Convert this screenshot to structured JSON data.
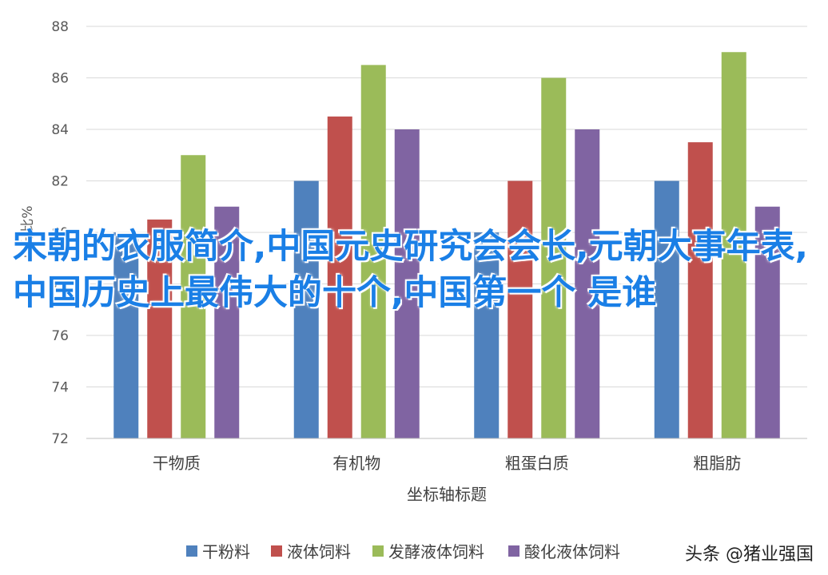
{
  "chart_data": {
    "type": "bar",
    "categories": [
      "干物质",
      "有机物",
      "粗蛋白质",
      "粗脂肪"
    ],
    "series": [
      {
        "name": "干粉料",
        "color": "#4f81bd",
        "values": [
          80,
          82,
          80,
          82
        ]
      },
      {
        "name": "液体饲料",
        "color": "#c0504d",
        "values": [
          80.5,
          84.5,
          82,
          83.5
        ]
      },
      {
        "name": "发酵液体饲料",
        "color": "#9bbb59",
        "values": [
          83,
          86.5,
          86,
          87
        ]
      },
      {
        "name": "酸化液体饲料",
        "color": "#8064a2",
        "values": [
          81,
          84,
          84,
          81
        ]
      }
    ],
    "xlabel": "坐标轴标题",
    "ylabel": "百分比%",
    "ylim": [
      72,
      88
    ],
    "yticks": [
      "72",
      "74",
      "76",
      "78",
      "80",
      "82",
      "84",
      "86",
      "88"
    ],
    "grid": true,
    "legend_position": "bottom"
  },
  "overlay_text": "宋朝的衣服简介,中国元史研究会会长,元朝大事年表,中国历史上最伟大的十个,中国第一个 是谁",
  "watermark": "头条 @猪业强国"
}
